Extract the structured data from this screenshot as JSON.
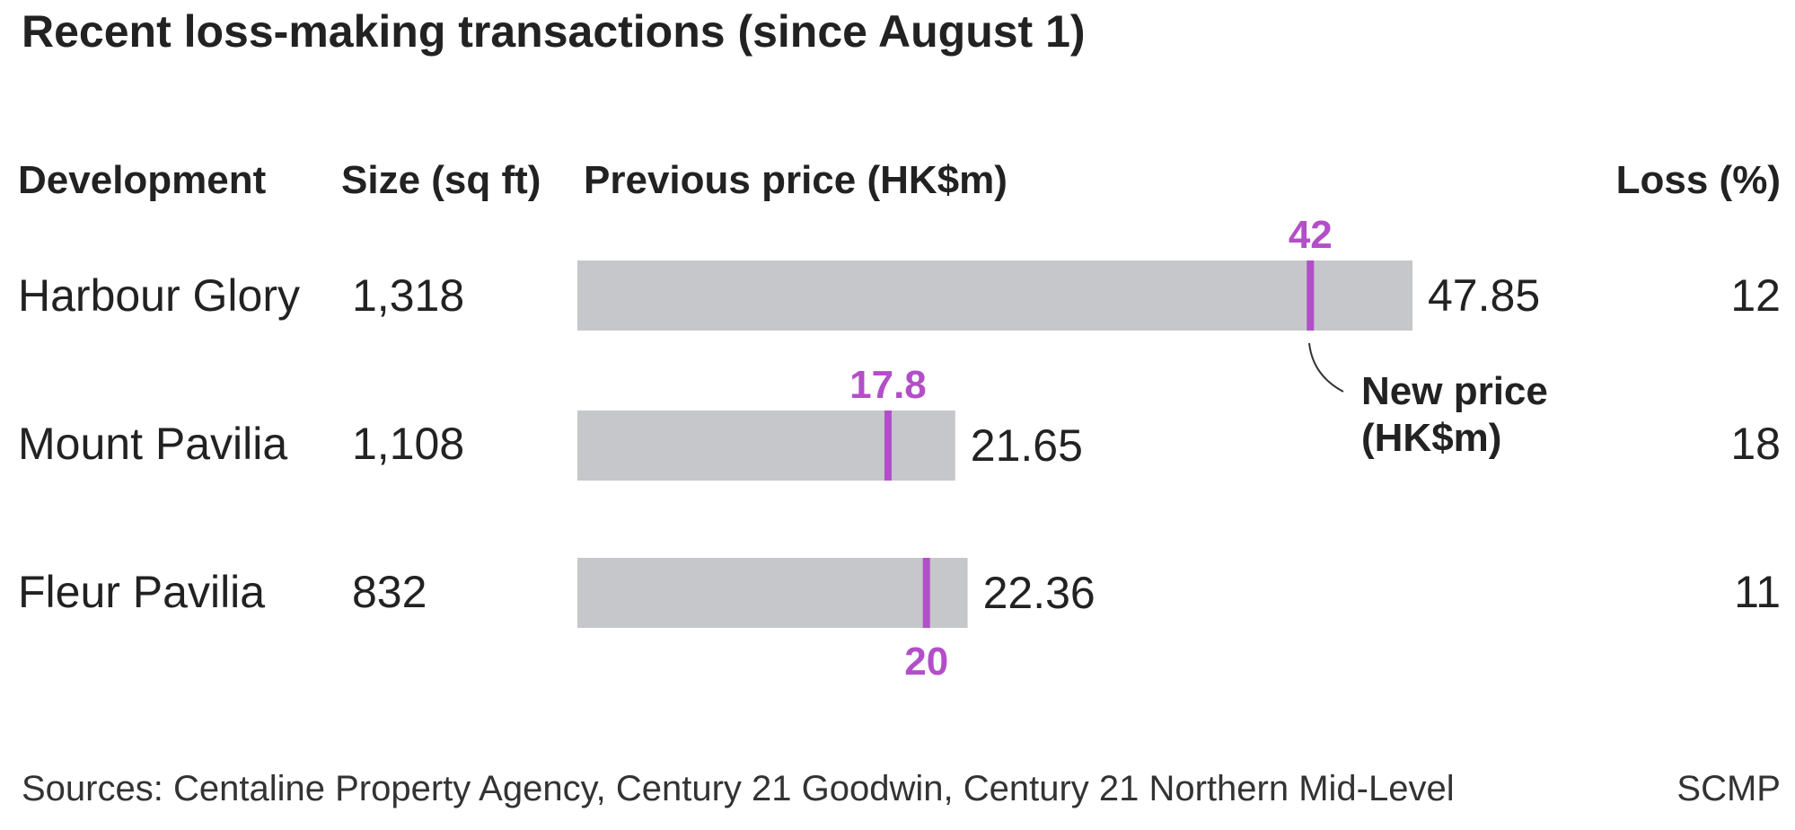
{
  "title": "Recent loss-making transactions (since August 1)",
  "headers": {
    "development": "Development",
    "size": "Size (sq ft)",
    "previous_price": "Previous price (HK$m)",
    "loss": "Loss (%)"
  },
  "rows": [
    {
      "development": "Harbour Glory",
      "size": "1,318",
      "loss": "12"
    },
    {
      "development": "Mount Pavilia",
      "size": "1,108",
      "loss": "18"
    },
    {
      "development": "Fleur Pavilia",
      "size": "832",
      "loss": "11"
    }
  ],
  "annotation": {
    "line1": "New price",
    "line2": "(HK$m)"
  },
  "source": "Sources: Centaline Property Agency, Century 21 Goodwin, Century 21 Northern Mid-Level",
  "credit": "SCMP",
  "colors": {
    "bar": "#c6c7ca",
    "new_price": "#b24fc8",
    "text": "#222222"
  },
  "chart_data": {
    "type": "bar",
    "orientation": "horizontal",
    "categories": [
      "Harbour Glory",
      "Mount Pavilia",
      "Fleur Pavilia"
    ],
    "series": [
      {
        "name": "Previous price (HK$m)",
        "values": [
          47.85,
          21.65,
          22.36
        ],
        "labels": [
          "47.85",
          "21.65",
          "22.36"
        ]
      },
      {
        "name": "New price (HK$m)",
        "values": [
          42,
          17.8,
          20
        ],
        "labels": [
          "42",
          "17.8",
          "20"
        ]
      }
    ],
    "xlim": [
      0,
      47.85
    ],
    "grid": false
  }
}
